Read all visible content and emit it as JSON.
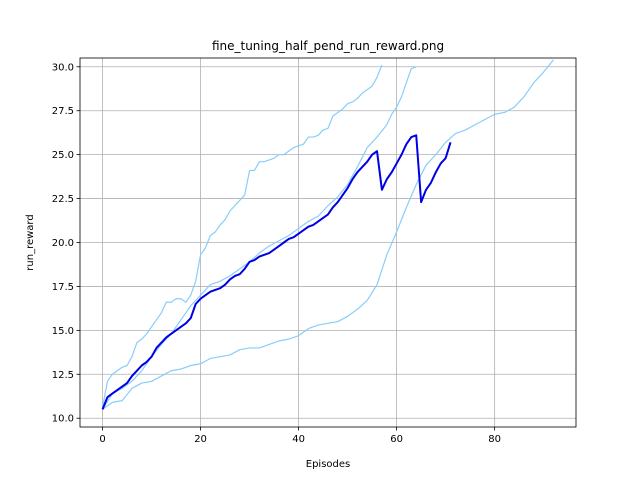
{
  "chart_data": {
    "type": "line",
    "title": "fine_tuning_half_pend_run_reward.png",
    "xlabel": "Episodes",
    "ylabel": "run_reward",
    "xlim": [
      -4.6,
      96.6
    ],
    "ylim": [
      9.5,
      30.5
    ],
    "x_ticks": [
      0,
      20,
      40,
      60,
      80
    ],
    "y_ticks": [
      10.0,
      12.5,
      15.0,
      17.5,
      20.0,
      22.5,
      25.0,
      27.5,
      30.0
    ],
    "grid": true,
    "colors": {
      "main": "#0000e6",
      "band": "#87cefa",
      "grid": "#b0b0b0"
    },
    "series": [
      {
        "role": "upper-band",
        "x": [
          0,
          1,
          2,
          3,
          4,
          5,
          6,
          7,
          8,
          9,
          10,
          11,
          12,
          13,
          14,
          15,
          16,
          17,
          18,
          19,
          20,
          21,
          22,
          23,
          24,
          25,
          26,
          27,
          28,
          29,
          30,
          31,
          32,
          33,
          34,
          35,
          36,
          37,
          38,
          39,
          40,
          41,
          42,
          43,
          44,
          45,
          46,
          47,
          48,
          49,
          50,
          51,
          52,
          53,
          54,
          55,
          56,
          57
        ],
        "values": [
          10.6,
          12.1,
          12.5,
          12.7,
          12.9,
          13.0,
          13.5,
          14.3,
          14.5,
          14.8,
          15.2,
          15.6,
          16.0,
          16.6,
          16.6,
          16.8,
          16.8,
          16.6,
          17.0,
          17.8,
          19.3,
          19.7,
          20.4,
          20.6,
          21.0,
          21.3,
          21.8,
          22.1,
          22.4,
          22.7,
          24.1,
          24.1,
          24.6,
          24.6,
          24.7,
          24.8,
          25.0,
          25.0,
          25.2,
          25.4,
          25.5,
          25.6,
          26.0,
          26.0,
          26.1,
          26.4,
          26.5,
          27.2,
          27.4,
          27.6,
          27.9,
          28.0,
          28.2,
          28.5,
          28.7,
          28.9,
          29.4,
          30.1
        ]
      },
      {
        "role": "upper-band",
        "x": [
          0,
          2,
          4,
          6,
          8,
          10,
          12,
          14,
          16,
          18,
          20,
          22,
          24,
          26,
          28,
          30,
          32,
          34,
          36,
          38,
          40,
          42,
          44,
          46,
          48,
          50,
          52,
          54,
          56,
          58,
          59,
          60,
          61,
          62,
          63,
          64
        ],
        "values": [
          10.5,
          11.4,
          11.7,
          12.1,
          12.7,
          13.5,
          14.2,
          14.8,
          15.6,
          16.4,
          17.0,
          17.6,
          17.8,
          18.1,
          18.5,
          18.9,
          19.4,
          19.8,
          20.1,
          20.4,
          20.8,
          21.2,
          21.5,
          22.1,
          22.6,
          23.3,
          24.3,
          25.4,
          26.0,
          26.7,
          27.3,
          27.7,
          28.3,
          29.1,
          29.9,
          30.0
        ]
      },
      {
        "role": "lower-band",
        "x": [
          0,
          2,
          4,
          6,
          8,
          10,
          12,
          14,
          16,
          18,
          20,
          22,
          24,
          26,
          28,
          30,
          32,
          34,
          36,
          38,
          40,
          42,
          44,
          46,
          48,
          50,
          52,
          54,
          56,
          58,
          60,
          62,
          64,
          66,
          68,
          70,
          72,
          74,
          76,
          78,
          80,
          82,
          84,
          86,
          88,
          90,
          92
        ],
        "values": [
          10.5,
          10.9,
          11.0,
          11.7,
          12.0,
          12.1,
          12.4,
          12.7,
          12.8,
          13.0,
          13.1,
          13.4,
          13.5,
          13.6,
          13.9,
          14.0,
          14.0,
          14.2,
          14.4,
          14.5,
          14.7,
          15.1,
          15.3,
          15.4,
          15.5,
          15.8,
          16.2,
          16.7,
          17.6,
          19.3,
          20.6,
          22.0,
          23.3,
          24.4,
          25.0,
          25.7,
          26.2,
          26.4,
          26.7,
          27.0,
          27.3,
          27.4,
          27.7,
          28.3,
          29.1,
          29.7,
          30.4
        ]
      },
      {
        "role": "mean",
        "x": [
          0,
          1,
          2,
          3,
          4,
          5,
          6,
          7,
          8,
          9,
          10,
          11,
          12,
          13,
          14,
          15,
          16,
          17,
          18,
          19,
          20,
          21,
          22,
          23,
          24,
          25,
          26,
          27,
          28,
          29,
          30,
          31,
          32,
          33,
          34,
          35,
          36,
          37,
          38,
          39,
          40,
          41,
          42,
          43,
          44,
          45,
          46,
          47,
          48,
          49,
          50,
          51,
          52,
          53,
          54,
          55,
          56,
          57,
          58,
          59,
          60,
          61,
          62,
          63,
          64,
          65,
          66,
          67,
          68,
          69,
          70,
          71
        ],
        "values": [
          10.5,
          11.2,
          11.4,
          11.6,
          11.8,
          12.0,
          12.4,
          12.7,
          13.0,
          13.2,
          13.5,
          14.0,
          14.3,
          14.6,
          14.8,
          15.0,
          15.2,
          15.4,
          15.7,
          16.5,
          16.8,
          17.0,
          17.2,
          17.3,
          17.4,
          17.6,
          17.9,
          18.1,
          18.2,
          18.5,
          18.9,
          19.0,
          19.2,
          19.3,
          19.4,
          19.6,
          19.8,
          20.0,
          20.2,
          20.3,
          20.5,
          20.7,
          20.9,
          21.0,
          21.2,
          21.4,
          21.6,
          22.0,
          22.3,
          22.7,
          23.1,
          23.6,
          24.0,
          24.3,
          24.6,
          25.0,
          25.2,
          23.0,
          23.6,
          24.0,
          24.5,
          25.0,
          25.6,
          26.0,
          26.1,
          22.3,
          23.0,
          23.4,
          24.0,
          24.5,
          24.8,
          25.7
        ]
      }
    ]
  }
}
